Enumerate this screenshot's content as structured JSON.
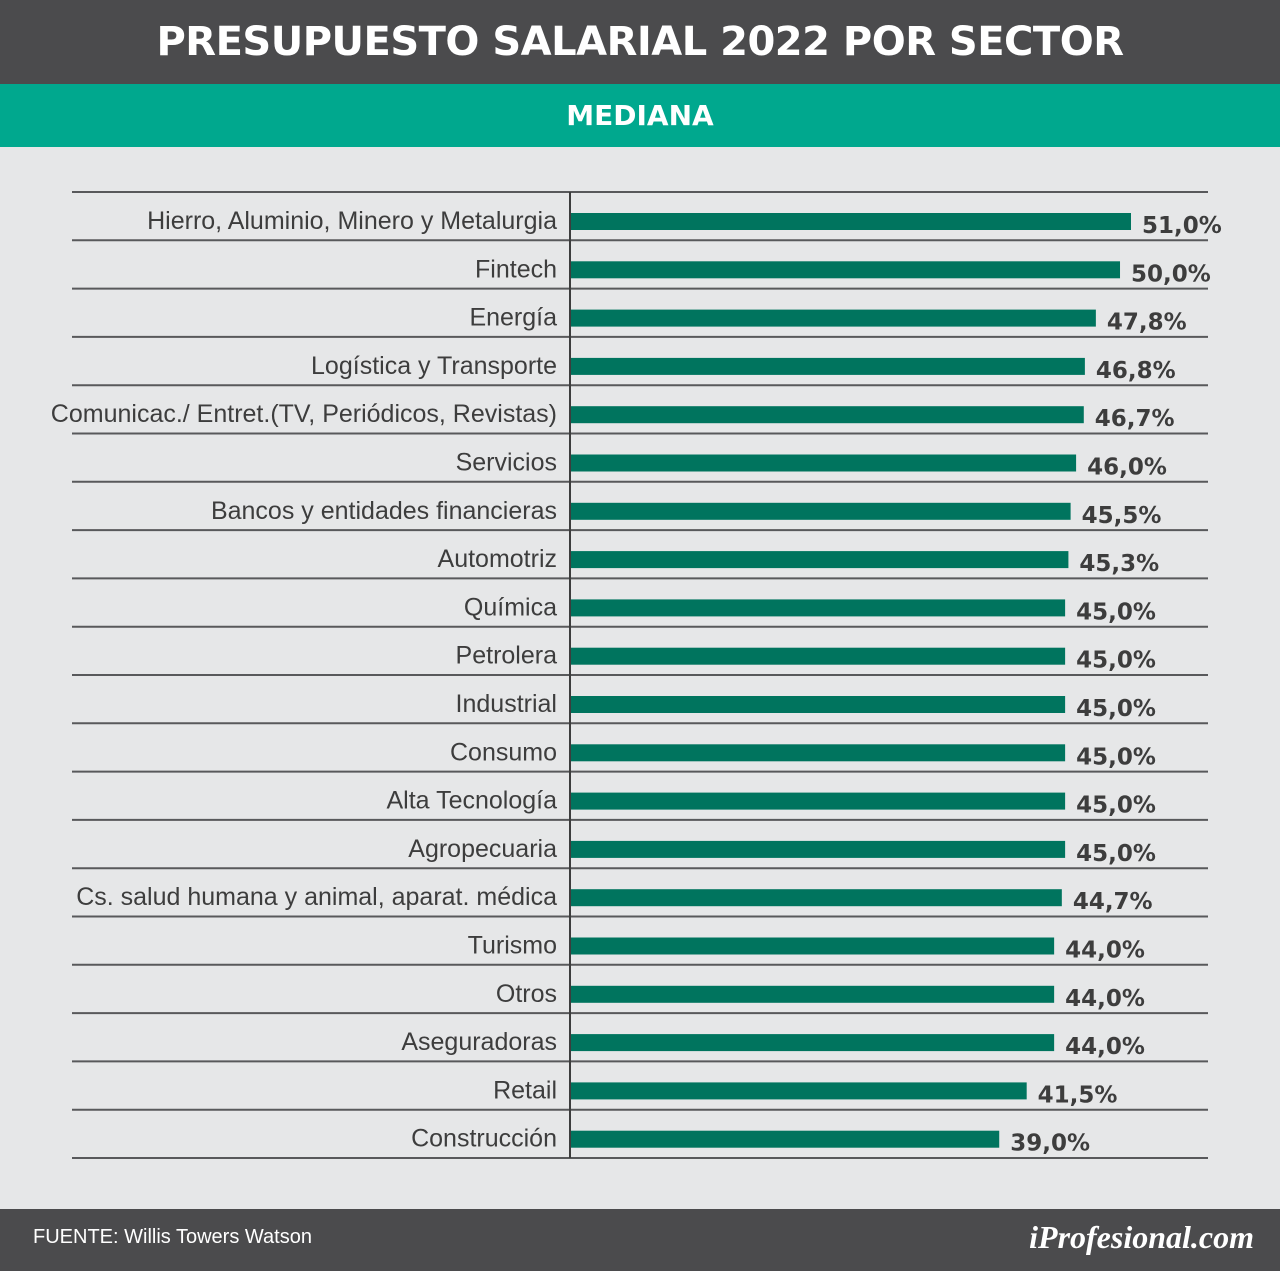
{
  "header": {
    "title": "PRESUPUESTO SALARIAL 2022 POR SECTOR"
  },
  "subheader": {
    "label": "MEDIANA"
  },
  "colors": {
    "bar": "#00745e",
    "header_bg": "#4b4b4d",
    "subheader_bg": "#00a88e",
    "background": "#e6e7e8",
    "text": "#3d3d3d"
  },
  "chart_data": {
    "type": "bar",
    "orientation": "horizontal",
    "title": "PRESUPUESTO SALARIAL 2022 POR SECTOR",
    "subtitle": "MEDIANA",
    "categories": [
      "Hierro, Aluminio, Minero y Metalurgia",
      "Fintech",
      "Energía",
      "Logística y Transporte",
      "Comunicac./ Entret.(TV, Periódicos, Revistas)",
      "Servicios",
      "Bancos y entidades financieras",
      "Automotriz",
      "Química",
      "Petrolera",
      "Industrial",
      "Consumo",
      "Alta Tecnología",
      "Agropecuaria",
      "Cs. salud humana y animal, aparat. médica",
      "Turismo",
      "Otros",
      "Aseguradoras",
      "Retail",
      "Construcción"
    ],
    "values": [
      51.0,
      50.0,
      47.8,
      46.8,
      46.7,
      46.0,
      45.5,
      45.3,
      45.0,
      45.0,
      45.0,
      45.0,
      45.0,
      45.0,
      44.7,
      44.0,
      44.0,
      44.0,
      41.5,
      39.0
    ],
    "labels": [
      "51,0%",
      "50,0%",
      "47,8%",
      "46,8%",
      "46,7%",
      "46,0%",
      "45,5%",
      "45,3%",
      "45,0%",
      "45,0%",
      "45,0%",
      "45,0%",
      "45,0%",
      "45,0%",
      "44,7%",
      "44,0%",
      "44,0%",
      "44,0%",
      "41,5%",
      "39,0%"
    ],
    "xlim": [
      0,
      51
    ],
    "grid": "row separators"
  },
  "footer": {
    "source_label": "FUENTE:",
    "source_value": "Willis Towers Watson",
    "brand": "iProfesional.com"
  }
}
